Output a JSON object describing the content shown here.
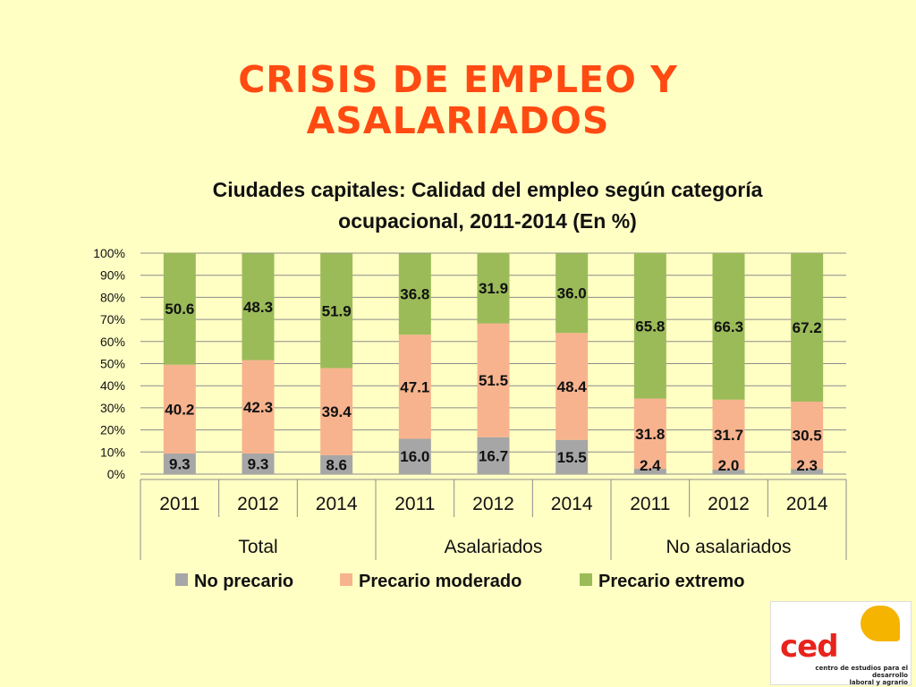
{
  "slide": {
    "title_line1": "CRISIS DE EMPLEO Y",
    "title_line2": "ASALARIADOS"
  },
  "colors": {
    "background": "#FFFFC4",
    "title": "#FF4A12",
    "no_precario": "#A6A6A6",
    "precario_moderado": "#F7B38E",
    "precario_extremo": "#9BBB59"
  },
  "chart_data": {
    "type": "bar",
    "stacked": true,
    "percent_stacked": true,
    "title_line1": "Ciudades capitales: Calidad del empleo según categoría",
    "title_line2": "ocupacional, 2011-2014 (En %)",
    "ylim": [
      0,
      100
    ],
    "y_ticks": [
      "0%",
      "10%",
      "20%",
      "30%",
      "40%",
      "50%",
      "60%",
      "70%",
      "80%",
      "90%",
      "100%"
    ],
    "grid": true,
    "legend_position": "bottom",
    "groups": [
      "Total",
      "Asalariados",
      "No asalariados"
    ],
    "categories": [
      "2011",
      "2012",
      "2014",
      "2011",
      "2012",
      "2014",
      "2011",
      "2012",
      "2014"
    ],
    "series": [
      {
        "name": "No precario",
        "color": "#A6A6A6",
        "values": [
          9.3,
          9.3,
          8.6,
          16.0,
          16.7,
          15.5,
          2.4,
          2.0,
          2.3
        ]
      },
      {
        "name": "Precario moderado",
        "color": "#F7B38E",
        "values": [
          40.2,
          42.3,
          39.4,
          47.1,
          51.5,
          48.4,
          31.8,
          31.7,
          30.5
        ]
      },
      {
        "name": "Precario extremo",
        "color": "#9BBB59",
        "values": [
          50.6,
          48.3,
          51.9,
          36.8,
          31.9,
          36.0,
          65.8,
          66.3,
          67.2
        ]
      }
    ]
  },
  "logo": {
    "wordmark": "ced",
    "subtitle_line1": "centro de estudios para el desarrollo",
    "subtitle_line2": "laboral y agrario"
  }
}
